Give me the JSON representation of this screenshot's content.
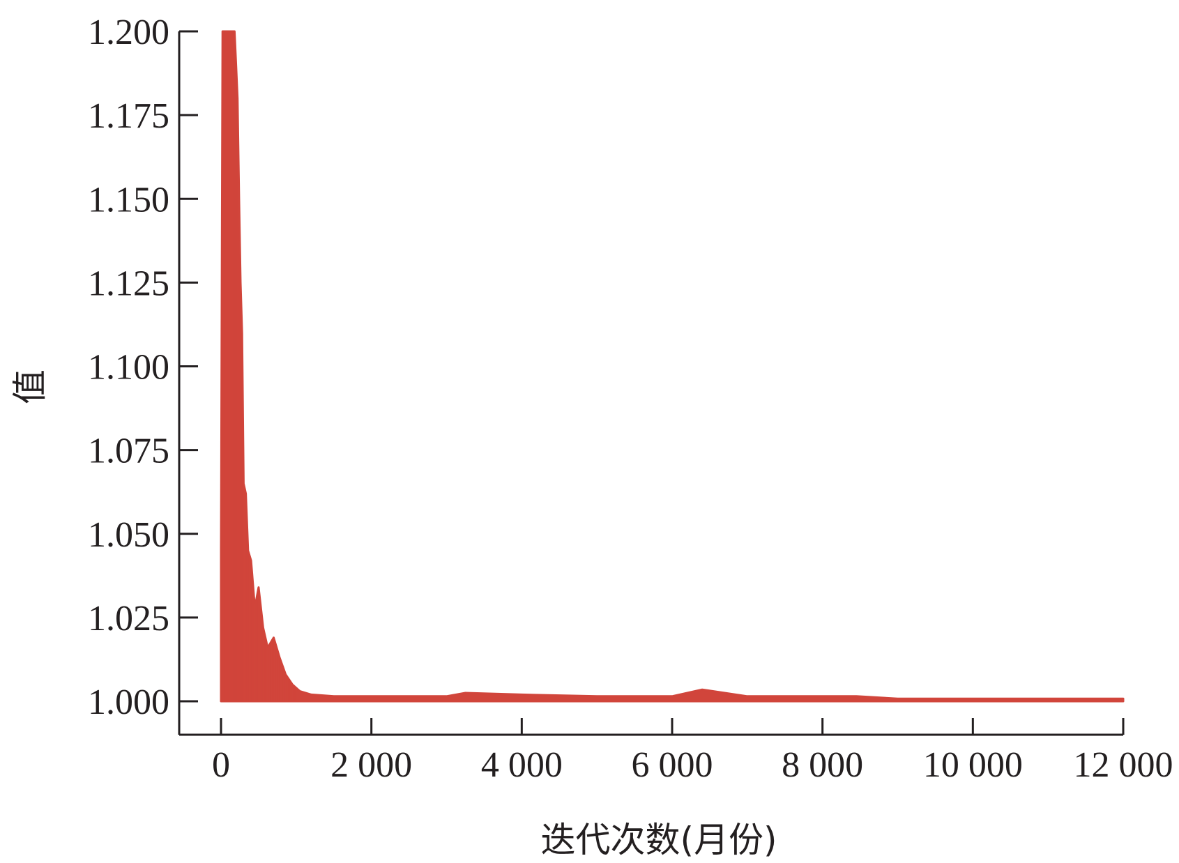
{
  "chart_data": {
    "type": "line",
    "title": "",
    "xlabel": "迭代次数(月份)",
    "ylabel": "值",
    "xlim": [
      0,
      12000
    ],
    "ylim": [
      1.0,
      1.2
    ],
    "x_ticks": [
      0,
      2000,
      4000,
      6000,
      8000,
      10000,
      12000
    ],
    "x_tick_labels": [
      "0",
      "2 000",
      "4 000",
      "6 000",
      "8 000",
      "10 000",
      "12 000"
    ],
    "y_ticks": [
      1.0,
      1.025,
      1.05,
      1.075,
      1.1,
      1.125,
      1.15,
      1.175,
      1.2
    ],
    "y_tick_labels": [
      "1.000",
      "1.025",
      "1.050",
      "1.075",
      "1.100",
      "1.125",
      "1.150",
      "1.175",
      "1.200"
    ],
    "grid": false,
    "legend": "none",
    "series": [
      {
        "color": "#d1453b",
        "x": [
          0,
          20,
          40,
          60,
          80,
          100,
          120,
          140,
          160,
          180,
          200,
          220,
          240,
          260,
          280,
          300,
          330,
          360,
          400,
          450,
          500,
          560,
          620,
          700,
          780,
          860,
          950,
          1050,
          1200,
          1500,
          2000,
          3000,
          3250,
          4000,
          5000,
          6000,
          6400,
          7000,
          8000,
          8450,
          9000,
          10000,
          11000,
          12000
        ],
        "y_upper": [
          1.045,
          1.2,
          1.2,
          1.2,
          1.2,
          1.2,
          1.2,
          1.2,
          1.2,
          1.2,
          1.19,
          1.18,
          1.15,
          1.125,
          1.11,
          1.065,
          1.062,
          1.045,
          1.042,
          1.028,
          1.034,
          1.022,
          1.016,
          1.019,
          1.013,
          1.008,
          1.005,
          1.003,
          1.002,
          1.0015,
          1.0015,
          1.0015,
          1.0025,
          1.002,
          1.0015,
          1.0015,
          1.0035,
          1.0015,
          1.0015,
          1.0015,
          1.0008,
          1.0008,
          1.0008,
          1.0008
        ],
        "y_lower": [
          1.0,
          1.0,
          1.0,
          1.0,
          1.0,
          1.0,
          1.0,
          1.0,
          1.0,
          1.0,
          1.0,
          1.0,
          1.0,
          1.0,
          1.0,
          1.0,
          1.0,
          1.0,
          1.0,
          1.0,
          1.0,
          1.0,
          1.0,
          1.0,
          1.0,
          1.0,
          1.0,
          1.0,
          1.0,
          1.0,
          1.0,
          1.0,
          1.0,
          1.0,
          1.0,
          1.0,
          1.0,
          1.0,
          1.0,
          1.0,
          1.0,
          1.0,
          1.0,
          1.0
        ]
      }
    ]
  }
}
